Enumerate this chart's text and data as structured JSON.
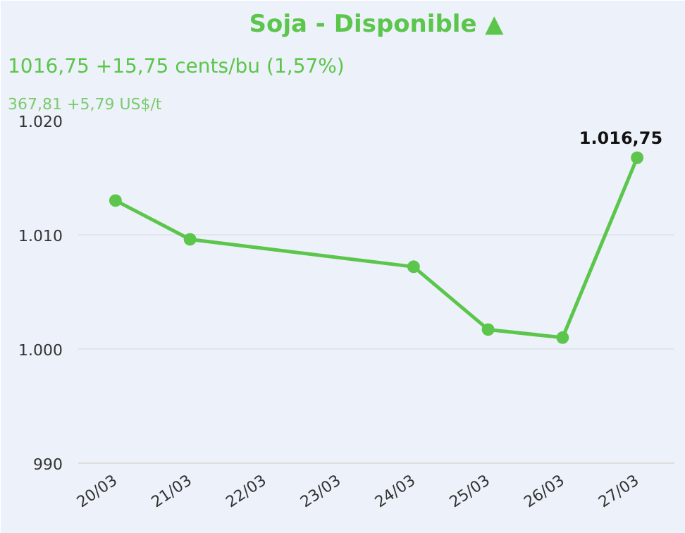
{
  "chart_data": {
    "type": "line",
    "title": "Soja - Disponible ▲",
    "subtitle": "1016,75 +15,75 cents/bu (1,57%)",
    "annotations": [
      "367,81 +5,79 US$/t"
    ],
    "categories": [
      "20/03",
      "21/03",
      "22/03",
      "23/03",
      "24/03",
      "25/03",
      "26/03",
      "27/03"
    ],
    "series": [
      {
        "color": "#5cc64c",
        "values": [
          1013,
          1009.6,
          null,
          null,
          1007.2,
          1001.7,
          1001.0,
          1016.75
        ],
        "value_labels": [
          null,
          null,
          null,
          null,
          null,
          null,
          null,
          "1.016,75"
        ]
      }
    ],
    "ylim": [
      990,
      1020
    ],
    "yticks": [
      {
        "value": 990,
        "label": "990"
      },
      {
        "value": 1000,
        "label": "1.000"
      },
      {
        "value": 1010,
        "label": "1.010"
      },
      {
        "value": 1020,
        "label": "1.020"
      }
    ],
    "grid": "y",
    "marker": "circle"
  }
}
